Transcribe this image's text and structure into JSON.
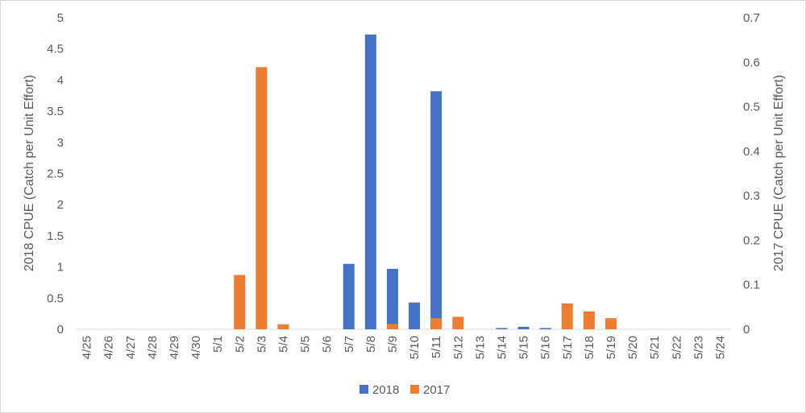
{
  "chart_data": {
    "type": "bar",
    "title": "",
    "xlabel": "",
    "ylabel": "2018 CPUE (Catch per Unit Effort)",
    "y2label": "2017 CPUE (Catch per Unit Effort)",
    "ylim": [
      0,
      5
    ],
    "y2lim": [
      0,
      0.7
    ],
    "yticks": [
      "0",
      "0.5",
      "1",
      "1.5",
      "2",
      "2.5",
      "3",
      "3.5",
      "4",
      "4.5",
      "5"
    ],
    "y2ticks": [
      "0",
      "0.1",
      "0.2",
      "0.3",
      "0.4",
      "0.5",
      "0.6",
      "0.7"
    ],
    "categories": [
      "4/25",
      "4/26",
      "4/27",
      "4/28",
      "4/29",
      "4/30",
      "5/1",
      "5/2",
      "5/3",
      "5/4",
      "5/5",
      "5/6",
      "5/7",
      "5/8",
      "5/9",
      "5/10",
      "5/11",
      "5/12",
      "5/13",
      "5/14",
      "5/15",
      "5/16",
      "5/17",
      "5/18",
      "5/19",
      "5/20",
      "5/21",
      "5/22",
      "5/23",
      "5/24"
    ],
    "series": [
      {
        "name": "2018",
        "axis": "left",
        "color": "#4472C4",
        "values": [
          0,
          0,
          0,
          0,
          0,
          0,
          0,
          0,
          0,
          0,
          0,
          0,
          1.05,
          4.73,
          0.97,
          0.43,
          3.82,
          0,
          0,
          0.02,
          0.04,
          0.02,
          0,
          0,
          0,
          0,
          0,
          0,
          0,
          0
        ]
      },
      {
        "name": "2017",
        "axis": "right",
        "color": "#ED7D31",
        "values": [
          0,
          0,
          0,
          0,
          0,
          0,
          0,
          0.122,
          0.589,
          0.011,
          0,
          0,
          0,
          0,
          0.012,
          0,
          0.025,
          0.028,
          0,
          0,
          0,
          0,
          0.058,
          0.04,
          0.025,
          0,
          0,
          0,
          0,
          0
        ]
      }
    ],
    "legend_position": "bottom"
  }
}
